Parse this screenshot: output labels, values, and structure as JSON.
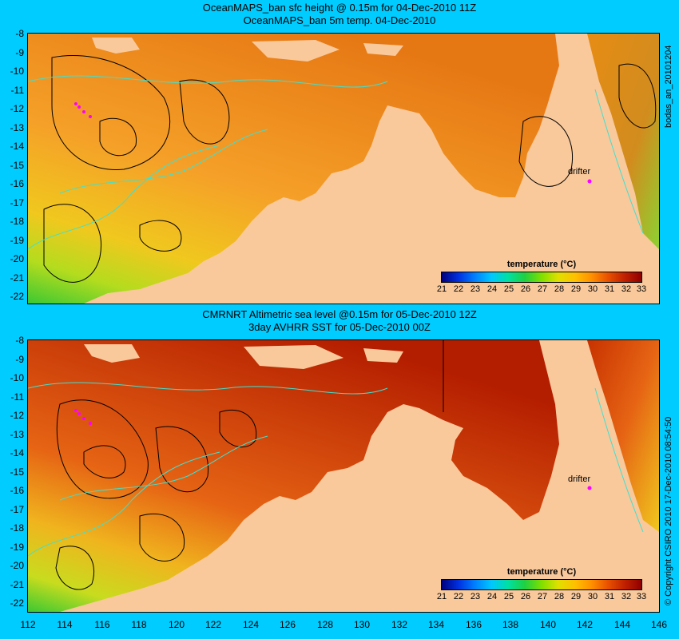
{
  "top": {
    "title_line1": "OceanMAPS_ban sfc height @ 0.15m for 04-Dec-2010 11Z",
    "title_line2": "OceanMAPS_ban 5m temp. 04-Dec-2010",
    "side_label": "bodas_an_20101204",
    "drifter_label": "drifter",
    "colorbar_title": "temperature (°C)"
  },
  "bottom": {
    "title_line1": "CMRNRT Altimetric sea level  @0.15m  for 05-Dec-2010 12Z",
    "title_line2": "3day AVHRR SST for 05-Dec-2010 00Z",
    "side_label": "© Copyright CSIRO 2010  17-Dec-2010 08:54:50",
    "drifter_label": "drifter",
    "colorbar_title": "temperature (°C)"
  },
  "axes": {
    "y_ticks": [
      "-8",
      "-9",
      "-10",
      "-11",
      "-12",
      "-13",
      "-14",
      "-15",
      "-16",
      "-17",
      "-18",
      "-19",
      "-20",
      "-21",
      "-22"
    ],
    "x_ticks": [
      "112",
      "114",
      "116",
      "118",
      "120",
      "122",
      "124",
      "126",
      "128",
      "130",
      "132",
      "134",
      "136",
      "138",
      "140",
      "142",
      "144",
      "146"
    ]
  },
  "colorbar": {
    "labels": [
      "21",
      "22",
      "23",
      "24",
      "25",
      "26",
      "27",
      "28",
      "29",
      "30",
      "31",
      "32",
      "33"
    ]
  },
  "colors": {
    "background": "#00ccff",
    "land": "#f9c99c",
    "sea_warm": "#ff8c00",
    "sea_hot": "#c81e00",
    "contour": "#000000",
    "isobath": "#40e0d0",
    "drifter": "#ff00ff"
  }
}
